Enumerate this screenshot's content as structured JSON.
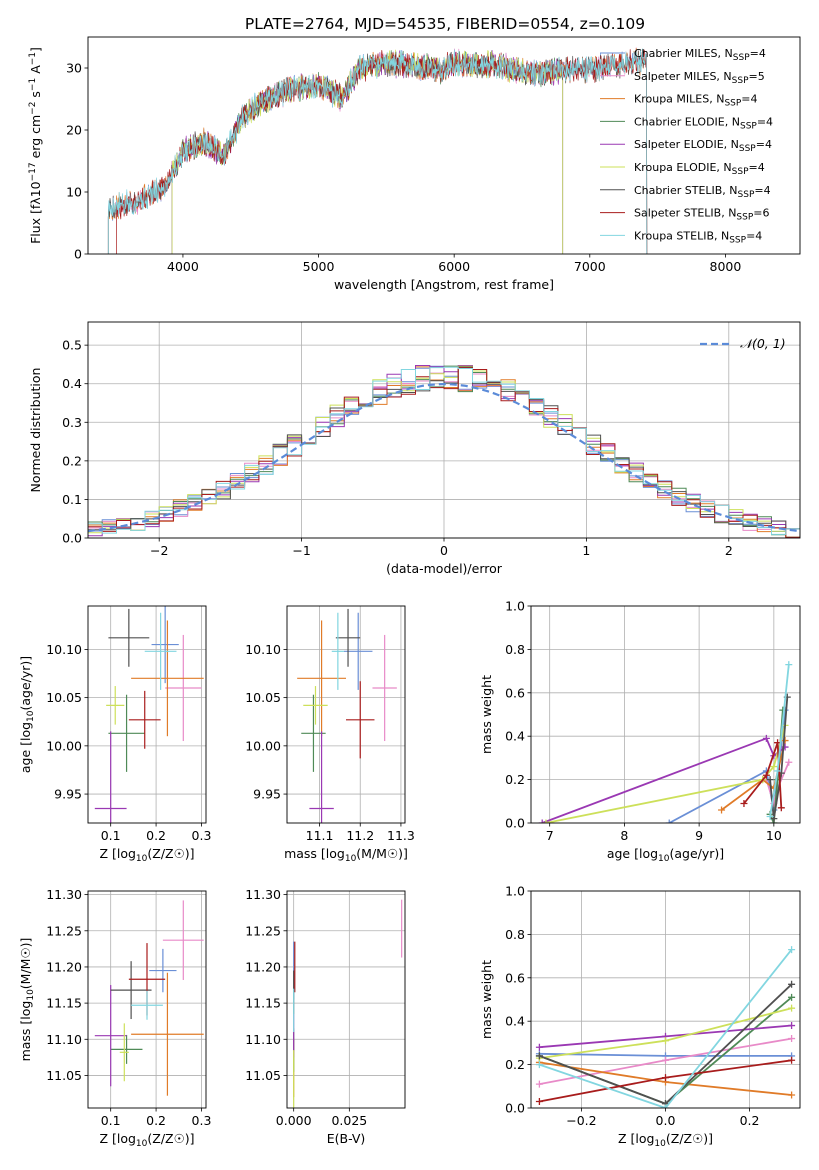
{
  "figure": {
    "title": "PLATE=2764, MJD=54535, FIBERID=0554, z=0.109"
  },
  "colors": {
    "Chabrier MILES": "#6a8fd6",
    "Salpeter MILES": "#e88ac8",
    "Kroupa MILES": "#e07b28",
    "Chabrier ELODIE": "#4f8a57",
    "Salpeter ELODIE": "#9a38b3",
    "Kroupa ELODIE": "#cde05a",
    "Chabrier STELIB": "#505050",
    "Salpeter STELIB": "#a81c1c",
    "Kroupa STELIB": "#82d6e0"
  },
  "chart_data": [
    {
      "id": "spectrum",
      "type": "line",
      "xlabel": "wavelength [Angstrom, rest frame]",
      "ylabel": "Flux [fλ10^-17 erg cm^-2 s^-1 A^-1]",
      "xlim": [
        3300,
        8550
      ],
      "ylim": [
        0,
        35
      ],
      "xticks": [
        4000,
        5000,
        6000,
        7000,
        8000
      ],
      "yticks": [
        0,
        10,
        20,
        30
      ],
      "grid": false,
      "legend": "upper-right",
      "series": [
        {
          "name": "Chabrier MILES, N_SSP=4",
          "range": [
            3450,
            7420
          ]
        },
        {
          "name": "Salpeter MILES, N_SSP=5",
          "range": [
            3450,
            7420
          ]
        },
        {
          "name": "Kroupa MILES, N_SSP=4",
          "range": [
            3450,
            7420
          ]
        },
        {
          "name": "Chabrier ELODIE, N_SSP=4",
          "range": [
            3920,
            6800
          ]
        },
        {
          "name": "Salpeter ELODIE, N_SSP=4",
          "range": [
            3920,
            6800
          ]
        },
        {
          "name": "Kroupa ELODIE, N_SSP=4",
          "range": [
            3920,
            6800
          ]
        },
        {
          "name": "Chabrier STELIB, N_SSP=4",
          "range": [
            3450,
            7420
          ]
        },
        {
          "name": "Salpeter STELIB, N_SSP=6",
          "range": [
            3510,
            7420
          ]
        },
        {
          "name": "Kroupa STELIB, N_SSP=4",
          "range": [
            3450,
            7420
          ]
        }
      ],
      "continuum": [
        [
          3450,
          7.2
        ],
        [
          3550,
          7.8
        ],
        [
          3650,
          8.5
        ],
        [
          3750,
          9.5
        ],
        [
          3850,
          10.5
        ],
        [
          3950,
          14.5
        ],
        [
          4000,
          16.5
        ],
        [
          4150,
          18.2
        ],
        [
          4300,
          15.8
        ],
        [
          4450,
          22.5
        ],
        [
          4600,
          24.8
        ],
        [
          4800,
          26.5
        ],
        [
          5000,
          27.3
        ],
        [
          5170,
          25.2
        ],
        [
          5300,
          29.8
        ],
        [
          5500,
          30.8
        ],
        [
          5700,
          30.5
        ],
        [
          5890,
          29.5
        ],
        [
          6000,
          30.8
        ],
        [
          6300,
          30.5
        ],
        [
          6562,
          29.2
        ],
        [
          6800,
          29.5
        ],
        [
          7000,
          29.8
        ],
        [
          7200,
          30.5
        ],
        [
          7420,
          31.2
        ]
      ]
    },
    {
      "id": "residuals",
      "type": "line",
      "xlabel": "(data-model)/error",
      "ylabel": "Normed distribution",
      "xlim": [
        -2.5,
        2.5
      ],
      "ylim": [
        0,
        0.56
      ],
      "xticks": [
        -2,
        -1,
        0,
        1,
        2
      ],
      "yticks": [
        0.0,
        0.1,
        0.2,
        0.3,
        0.4,
        0.5
      ],
      "grid": true,
      "legend": "upper-right",
      "reference": {
        "name": "𝒩(0, 1)",
        "mean": 0,
        "sigma": 1
      }
    },
    {
      "id": "age-vs-Z",
      "type": "scatter",
      "xlabel": "Z [log10(Z/Z☉)]",
      "ylabel": "age  [log10(age/yr)]",
      "xlim": [
        0.05,
        0.31
      ],
      "ylim": [
        9.92,
        10.145
      ],
      "xticks": [
        0.1,
        0.2,
        0.3
      ],
      "yticks": [
        9.95,
        10.0,
        10.05,
        10.1
      ],
      "grid": true,
      "points": [
        {
          "x": 0.22,
          "y": 10.105,
          "ex": 0.03,
          "ey": 0.04
        },
        {
          "x": 0.26,
          "y": 10.06,
          "ex": 0.04,
          "ey": 0.055
        },
        {
          "x": 0.225,
          "y": 10.07,
          "ex": 0.08,
          "ey": 0.06
        },
        {
          "x": 0.135,
          "y": 10.013,
          "ex": 0.04,
          "ey": 0.04
        },
        {
          "x": 0.1,
          "y": 9.935,
          "ex": 0.035,
          "ey": 0.08
        },
        {
          "x": 0.11,
          "y": 10.042,
          "ex": 0.02,
          "ey": 0.02
        },
        {
          "x": 0.14,
          "y": 10.112,
          "ex": 0.045,
          "ey": 0.03
        },
        {
          "x": 0.175,
          "y": 10.027,
          "ex": 0.035,
          "ey": 0.03
        },
        {
          "x": 0.21,
          "y": 10.098,
          "ex": 0.035,
          "ey": 0.04
        }
      ]
    },
    {
      "id": "age-vs-mass",
      "type": "scatter",
      "xlabel": "mass [log10(M/M☉)]",
      "ylabel": "",
      "xlim": [
        11.02,
        11.31
      ],
      "ylim": [
        9.92,
        10.145
      ],
      "xticks": [
        11.1,
        11.2,
        11.3
      ],
      "yticks": [
        9.95,
        10.0,
        10.05,
        10.1
      ],
      "grid": true,
      "points": [
        {
          "x": 11.195,
          "y": 10.098,
          "ex": 0.035,
          "ey": 0.04
        },
        {
          "x": 11.26,
          "y": 10.06,
          "ex": 0.03,
          "ey": 0.055
        },
        {
          "x": 11.105,
          "y": 10.07,
          "ex": 0.06,
          "ey": 0.06
        },
        {
          "x": 11.085,
          "y": 10.013,
          "ex": 0.03,
          "ey": 0.04
        },
        {
          "x": 11.105,
          "y": 9.935,
          "ex": 0.03,
          "ey": 0.08
        },
        {
          "x": 11.09,
          "y": 10.042,
          "ex": 0.03,
          "ey": 0.02
        },
        {
          "x": 11.17,
          "y": 10.112,
          "ex": 0.03,
          "ey": 0.03
        },
        {
          "x": 11.2,
          "y": 10.027,
          "ex": 0.035,
          "ey": 0.04
        },
        {
          "x": 11.145,
          "y": 10.098,
          "ex": 0.015,
          "ey": 0.04
        }
      ]
    },
    {
      "id": "mass-weight-vs-age",
      "type": "line",
      "xlabel": "age  [log10(age/yr)]",
      "ylabel": "mass weight",
      "xlim": [
        6.75,
        10.35
      ],
      "ylim": [
        0.0,
        1.0
      ],
      "xticks": [
        7,
        8,
        9,
        10
      ],
      "yticks": [
        0.0,
        0.2,
        0.4,
        0.6,
        0.8,
        1.0
      ],
      "grid": true,
      "series": [
        {
          "x": [
            8.6,
            9.9,
            10.0,
            10.15
          ],
          "y": [
            0.0,
            0.24,
            0.06,
            0.52
          ]
        },
        {
          "x": [
            9.9,
            10.0,
            10.05,
            10.2
          ],
          "y": [
            0.2,
            0.09,
            0.16,
            0.28
          ]
        },
        {
          "x": [
            9.3,
            9.85,
            10.0,
            10.15
          ],
          "y": [
            0.06,
            0.2,
            0.16,
            0.38
          ]
        },
        {
          "x": [
            9.95,
            10.0,
            10.05,
            10.12
          ],
          "y": [
            0.04,
            0.0,
            0.2,
            0.52
          ]
        },
        {
          "x": [
            6.9,
            9.9,
            10.0,
            10.15
          ],
          "y": [
            0.0,
            0.39,
            0.31,
            0.35
          ]
        },
        {
          "x": [
            6.95,
            9.85,
            10.0,
            10.15
          ],
          "y": [
            0.0,
            0.2,
            0.26,
            0.45
          ]
        },
        {
          "x": [
            9.95,
            10.0,
            10.1,
            10.18
          ],
          "y": [
            0.2,
            0.02,
            0.23,
            0.58
          ]
        },
        {
          "x": [
            9.6,
            9.9,
            10.05,
            10.1
          ],
          "y": [
            0.09,
            0.22,
            0.37,
            0.07
          ]
        },
        {
          "x": [
            9.95,
            10.05,
            10.2
          ],
          "y": [
            0.03,
            0.24,
            0.73
          ]
        }
      ]
    },
    {
      "id": "mass-vs-Z",
      "type": "scatter",
      "xlabel": "Z [log10(Z/Z☉)]",
      "ylabel": "mass [log10(M/M☉)]",
      "xlim": [
        0.05,
        0.31
      ],
      "ylim": [
        11.005,
        11.305
      ],
      "xticks": [
        0.1,
        0.2,
        0.3
      ],
      "yticks": [
        11.05,
        11.1,
        11.15,
        11.2,
        11.25,
        11.3
      ],
      "grid": true,
      "points": [
        {
          "x": 0.215,
          "y": 11.195,
          "ex": 0.03,
          "ey": 0.03
        },
        {
          "x": 0.26,
          "y": 11.237,
          "ex": 0.045,
          "ey": 0.055
        },
        {
          "x": 0.225,
          "y": 11.107,
          "ex": 0.08,
          "ey": 0.085
        },
        {
          "x": 0.135,
          "y": 11.086,
          "ex": 0.035,
          "ey": 0.02
        },
        {
          "x": 0.1,
          "y": 11.105,
          "ex": 0.035,
          "ey": 0.07
        },
        {
          "x": 0.13,
          "y": 11.082,
          "ex": 0.01,
          "ey": 0.04
        },
        {
          "x": 0.145,
          "y": 11.168,
          "ex": 0.045,
          "ey": 0.04
        },
        {
          "x": 0.18,
          "y": 11.183,
          "ex": 0.04,
          "ey": 0.05
        },
        {
          "x": 0.18,
          "y": 11.147,
          "ex": 0.035,
          "ey": 0.02
        }
      ]
    },
    {
      "id": "mass-vs-ebv",
      "type": "scatter",
      "xlabel": "E(B-V)",
      "ylabel": "",
      "xlim": [
        -0.003,
        0.05
      ],
      "ylim": [
        11.005,
        11.305
      ],
      "xticks": [
        0.0,
        0.025
      ],
      "yticks": [
        11.05,
        11.1,
        11.15,
        11.2,
        11.25,
        11.3
      ],
      "grid": true,
      "points": [
        {
          "x": 0.0,
          "y": 11.195,
          "ex": 0,
          "ey": 0.04
        },
        {
          "x": 0.0485,
          "y": 11.253,
          "ex": 0,
          "ey": 0.04
        },
        {
          "x": 0.0,
          "y": 11.06,
          "ex": 0,
          "ey": 0.04
        },
        {
          "x": 0.0,
          "y": 11.085,
          "ex": 0,
          "ey": 0.03
        },
        {
          "x": 0.0,
          "y": 11.105,
          "ex": 0,
          "ey": 0.03
        },
        {
          "x": 0.0,
          "y": 11.045,
          "ex": 0,
          "ey": 0.04
        },
        {
          "x": 0.0,
          "y": 11.165,
          "ex": 0,
          "ey": 0.03
        },
        {
          "x": 0.0005,
          "y": 11.2,
          "ex": 0,
          "ey": 0.035
        },
        {
          "x": 0.0,
          "y": 11.14,
          "ex": 0,
          "ey": 0.03
        }
      ]
    },
    {
      "id": "mass-weight-vs-Z",
      "type": "line",
      "xlabel": "Z [log10(Z/Z☉)]",
      "ylabel": "mass weight",
      "xlim": [
        -0.32,
        0.32
      ],
      "ylim": [
        0.0,
        1.0
      ],
      "xticks": [
        -0.2,
        0.0,
        0.2
      ],
      "yticks": [
        0.0,
        0.2,
        0.4,
        0.6,
        0.8,
        1.0
      ],
      "grid": true,
      "series": [
        {
          "x": [
            -0.3,
            0.0,
            0.3
          ],
          "y": [
            0.25,
            0.24,
            0.24
          ]
        },
        {
          "x": [
            -0.3,
            0.0,
            0.3
          ],
          "y": [
            0.11,
            0.22,
            0.32
          ]
        },
        {
          "x": [
            -0.3,
            0.0,
            0.3
          ],
          "y": [
            0.21,
            0.12,
            0.06
          ]
        },
        {
          "x": [
            -0.3,
            0.0,
            0.3
          ],
          "y": [
            0.24,
            0.02,
            0.51
          ]
        },
        {
          "x": [
            -0.3,
            0.0,
            0.3
          ],
          "y": [
            0.28,
            0.33,
            0.38
          ]
        },
        {
          "x": [
            -0.3,
            0.0,
            0.3
          ],
          "y": [
            0.23,
            0.31,
            0.46
          ]
        },
        {
          "x": [
            -0.3,
            0.0,
            0.3
          ],
          "y": [
            0.24,
            0.02,
            0.57
          ]
        },
        {
          "x": [
            -0.3,
            0.0,
            0.3
          ],
          "y": [
            0.03,
            0.14,
            0.22
          ]
        },
        {
          "x": [
            -0.3,
            0.0,
            0.3
          ],
          "y": [
            0.2,
            0.0,
            0.73
          ]
        }
      ]
    }
  ]
}
